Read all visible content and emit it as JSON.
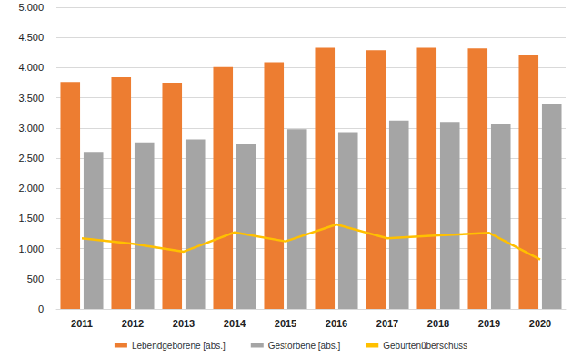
{
  "chart_data": {
    "type": "bar",
    "categories": [
      "2011",
      "2012",
      "2013",
      "2014",
      "2015",
      "2016",
      "2017",
      "2018",
      "2019",
      "2020"
    ],
    "series": [
      {
        "name": "Lebendgeborene [abs.]",
        "type": "bar",
        "color": "#ED7D31",
        "values": [
          3760,
          3840,
          3750,
          4010,
          4090,
          4330,
          4290,
          4330,
          4320,
          4210
        ]
      },
      {
        "name": "Gestorbene [abs.]",
        "type": "bar",
        "color": "#A5A5A5",
        "values": [
          2600,
          2760,
          2810,
          2740,
          2980,
          2930,
          3120,
          3100,
          3070,
          3400
        ]
      },
      {
        "name": "Geburtenüberschuss",
        "type": "line",
        "color": "#FFC000",
        "values": [
          1170,
          1080,
          950,
          1270,
          1120,
          1400,
          1170,
          1220,
          1260,
          820
        ]
      }
    ],
    "ylim": [
      0,
      5000
    ],
    "yticks": [
      0,
      500,
      {
        "value": 1000,
        "label": "1.000"
      },
      {
        "value": 1500,
        "label": "1.500"
      },
      {
        "value": 2000,
        "label": "2.000"
      },
      {
        "value": 2500,
        "label": "2.500"
      },
      {
        "value": 3000,
        "label": "3.000"
      },
      {
        "value": 3500,
        "label": "3.500"
      },
      {
        "value": 4000,
        "label": "4.000"
      },
      {
        "value": 4500,
        "label": "4.500"
      },
      {
        "value": 5000,
        "label": "5.000"
      }
    ],
    "grid": true,
    "legend": "bottom"
  }
}
